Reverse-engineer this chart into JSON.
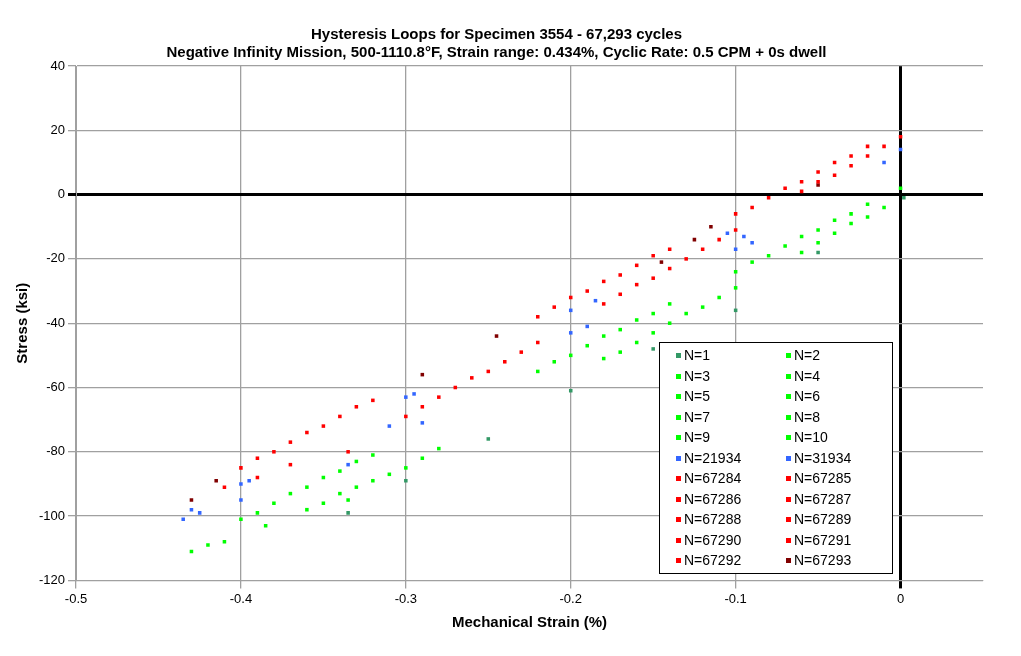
{
  "chart_data": {
    "type": "scatter",
    "title": "Hysteresis Loops for Specimen 3554 - 67,293 cycles",
    "subtitle": "Negative Infinity Mission, 500-1110.8°F, Strain range: 0.434%, Cyclic Rate: 0.5 CPM + 0s dwell",
    "xlabel": "Mechanical Strain (%)",
    "ylabel": "Stress (ksi)",
    "xlim": [
      -0.5,
      0.05
    ],
    "xticks": [
      -0.5,
      -0.4,
      -0.3,
      -0.2,
      -0.1,
      0
    ],
    "ylim": [
      -120,
      40
    ],
    "yticks": [
      -120,
      -100,
      -80,
      -60,
      -40,
      -20,
      0,
      20,
      40
    ],
    "grid": true,
    "legend": "bottom right",
    "marker": "square",
    "series": [
      {
        "name": "N=1",
        "color": "#339966",
        "x": [
          0.002,
          -0.05,
          -0.1,
          -0.15,
          -0.2,
          -0.25,
          -0.3,
          -0.335
        ],
        "values": [
          -1,
          -18,
          -36,
          -48,
          -61,
          -76,
          -89,
          -99
        ]
      },
      {
        "name": "N=2",
        "color": "#00ff00",
        "x": [
          -0.335,
          -0.43,
          -0.4,
          -0.22,
          -0.1,
          0,
          -0.06,
          -0.18,
          -0.36
        ],
        "values": [
          -95,
          -111,
          -101,
          -55,
          -24,
          2,
          -18,
          -51,
          -98
        ]
      },
      {
        "name": "N=3",
        "color": "#00ff00",
        "x": [
          -0.39,
          -0.21,
          -0.09,
          -0.05,
          -0.17,
          -0.35
        ],
        "values": [
          -99,
          -52,
          -21,
          -15,
          -49,
          -96
        ]
      },
      {
        "name": "N=4",
        "color": "#00ff00",
        "x": [
          -0.38,
          -0.2,
          -0.08,
          -0.04,
          -0.16,
          -0.34
        ],
        "values": [
          -96,
          -50,
          -19,
          -12,
          -46,
          -93
        ]
      },
      {
        "name": "N=5",
        "color": "#00ff00",
        "x": [
          -0.37,
          -0.19,
          -0.07,
          -0.03,
          -0.15,
          -0.33
        ],
        "values": [
          -93,
          -47,
          -16,
          -9,
          -43,
          -91
        ]
      },
      {
        "name": "N=6",
        "color": "#00ff00",
        "x": [
          -0.36,
          -0.18,
          -0.06,
          -0.02,
          -0.14,
          -0.32
        ],
        "values": [
          -91,
          -44,
          -13,
          -7,
          -40,
          -89
        ]
      },
      {
        "name": "N=7",
        "color": "#00ff00",
        "x": [
          -0.35,
          -0.17,
          -0.05,
          -0.01,
          -0.13,
          -0.31
        ],
        "values": [
          -88,
          -42,
          -11,
          -4,
          -37,
          -87
        ]
      },
      {
        "name": "N=8",
        "color": "#00ff00",
        "x": [
          -0.34,
          -0.16,
          -0.04,
          -0.12,
          -0.3,
          -0.42
        ],
        "values": [
          -86,
          -39,
          -8,
          -35,
          -85,
          -109
        ]
      },
      {
        "name": "N=9",
        "color": "#00ff00",
        "x": [
          -0.33,
          -0.15,
          -0.03,
          -0.11,
          -0.29,
          -0.41
        ],
        "values": [
          -83,
          -37,
          -6,
          -32,
          -82,
          -108
        ]
      },
      {
        "name": "N=10",
        "color": "#00ff00",
        "x": [
          -0.32,
          -0.14,
          -0.02,
          -0.1,
          -0.28,
          -0.385
        ],
        "values": [
          -81,
          -34,
          -3,
          -29,
          -79,
          -103
        ]
      },
      {
        "name": "N=21934",
        "color": "#3366ff",
        "x": [
          -0.43,
          -0.4,
          -0.3,
          -0.2,
          -0.105,
          0,
          -0.1,
          -0.2,
          -0.31,
          -0.4,
          -0.435
        ],
        "values": [
          -98,
          -90,
          -63,
          -36,
          -12,
          14,
          -17,
          -43,
          -72,
          -95,
          -101
        ]
      },
      {
        "name": "N=31934",
        "color": "#3366ff",
        "x": [
          -0.335,
          -0.29,
          -0.19,
          -0.09,
          -0.01,
          -0.095,
          -0.185,
          -0.295,
          -0.395,
          -0.425
        ],
        "values": [
          -84,
          -71,
          -41,
          -15,
          10,
          -13,
          -33,
          -62,
          -89,
          -99
        ]
      },
      {
        "name": "N=67284",
        "color": "#ff0000",
        "x": [
          -0.335,
          -0.3,
          -0.18,
          -0.06,
          0,
          -0.1,
          -0.22,
          -0.4
        ],
        "values": [
          -80,
          -69,
          -34,
          1,
          18,
          -6,
          -38,
          -85
        ]
      },
      {
        "name": "N=67285",
        "color": "#ff0000",
        "x": [
          -0.29,
          -0.17,
          -0.05,
          -0.09,
          -0.21,
          -0.39
        ],
        "values": [
          -66,
          -31,
          4,
          -4,
          -35,
          -82
        ]
      },
      {
        "name": "N=67286",
        "color": "#ff0000",
        "x": [
          -0.28,
          -0.16,
          -0.04,
          -0.08,
          -0.2,
          -0.38
        ],
        "values": [
          -63,
          -28,
          6,
          -1,
          -32,
          -80
        ]
      },
      {
        "name": "N=67287",
        "color": "#ff0000",
        "x": [
          -0.27,
          -0.15,
          -0.03,
          -0.07,
          -0.19,
          -0.37
        ],
        "values": [
          -60,
          -26,
          9,
          2,
          -30,
          -77
        ]
      },
      {
        "name": "N=67288",
        "color": "#ff0000",
        "x": [
          -0.26,
          -0.14,
          -0.02,
          -0.06,
          -0.18,
          -0.36
        ],
        "values": [
          -57,
          -23,
          12,
          4,
          -27,
          -74
        ]
      },
      {
        "name": "N=67289",
        "color": "#ff0000",
        "x": [
          -0.25,
          -0.13,
          -0.01,
          -0.05,
          -0.17,
          -0.35
        ],
        "values": [
          -55,
          -20,
          15,
          7,
          -25,
          -72
        ]
      },
      {
        "name": "N=67290",
        "color": "#ff0000",
        "x": [
          -0.24,
          -0.12,
          -0.41,
          -0.04,
          -0.16,
          -0.34
        ],
        "values": [
          -52,
          -17,
          -91,
          10,
          -22,
          -69
        ]
      },
      {
        "name": "N=67291",
        "color": "#ff0000",
        "x": [
          -0.23,
          -0.11,
          -0.39,
          -0.03,
          -0.15,
          -0.33
        ],
        "values": [
          -49,
          -14,
          -88,
          12,
          -19,
          -66
        ]
      },
      {
        "name": "N=67292",
        "color": "#ff0000",
        "x": [
          -0.22,
          -0.1,
          -0.37,
          -0.02,
          -0.14,
          -0.32
        ],
        "values": [
          -46,
          -11,
          -84,
          15,
          -17,
          -64
        ]
      },
      {
        "name": "N=67293",
        "color": "#800000",
        "x": [
          -0.43,
          -0.415,
          -0.29,
          -0.245,
          -0.115,
          -0.05,
          -0.125,
          -0.145
        ],
        "values": [
          -95,
          -89,
          -56,
          -44,
          -10,
          3,
          -14,
          -21
        ]
      }
    ]
  }
}
